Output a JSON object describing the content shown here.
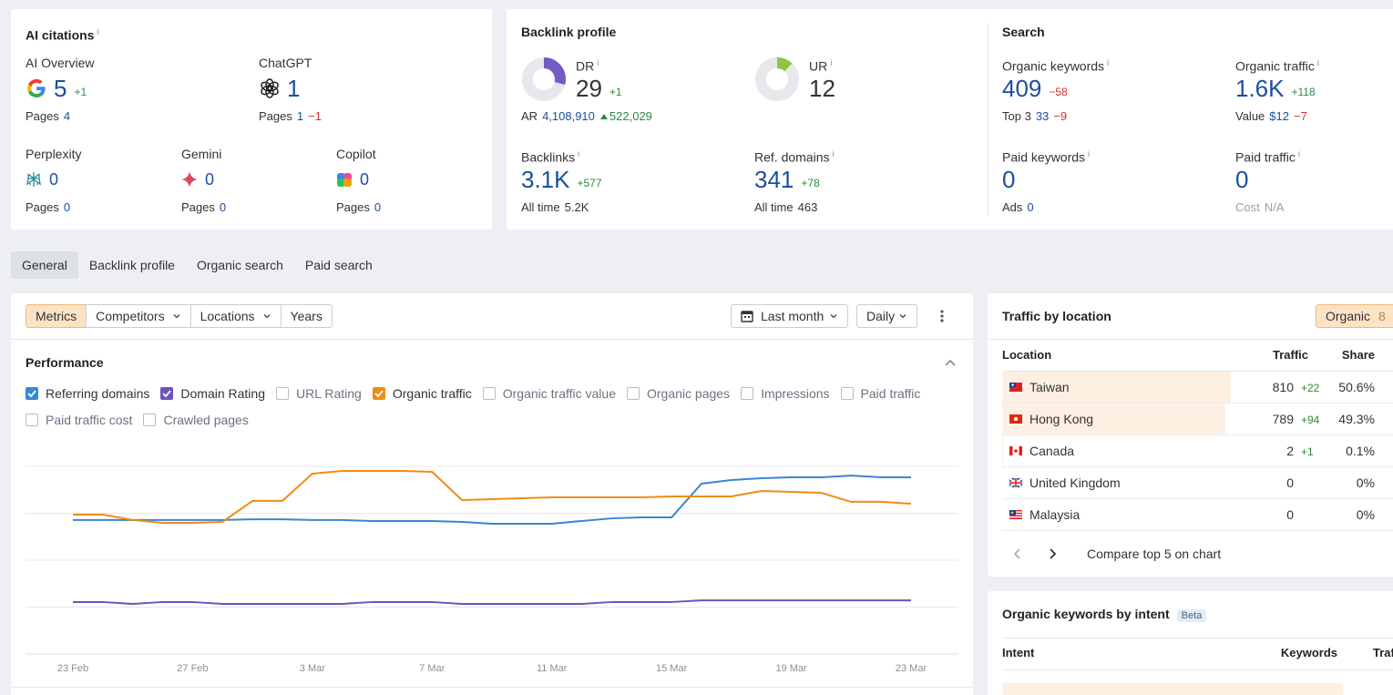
{
  "ai_citations": {
    "title": "AI citations",
    "info": "i",
    "metrics": [
      {
        "label": "AI Overview",
        "value": 5,
        "delta": "+1",
        "sub": {
          "label": "Pages",
          "value": 4
        }
      },
      {
        "label": "ChatGPT",
        "value": 1,
        "sub": {
          "label": "Pages",
          "value": 1,
          "delta": "−1"
        }
      },
      {
        "label": "Perplexity",
        "value": 0,
        "sub": {
          "label": "Pages",
          "value": 0
        }
      },
      {
        "label": "Gemini",
        "value": 0,
        "sub": {
          "label": "Pages",
          "value": 0
        }
      },
      {
        "label": "Copilot",
        "value": 0,
        "sub": {
          "label": "Pages",
          "value": 0
        }
      }
    ]
  },
  "backlink_profile": {
    "title": "Backlink profile",
    "metrics": [
      {
        "label": "DR",
        "info": "i",
        "value": 29,
        "range": [
          0,
          100
        ],
        "color": "#7459c9",
        "delta": "+1",
        "sub": {
          "label": "AR",
          "value": "4,108,910",
          "delta": "522,029"
        }
      },
      {
        "label": "UR",
        "info": "i",
        "value": 12,
        "range": [
          0,
          100
        ],
        "color": "#8dc63f"
      },
      {
        "label": "Backlinks",
        "info": "i",
        "value": "3.1K",
        "delta": "+577",
        "sub": {
          "label": "All time",
          "value": "5.2K"
        }
      },
      {
        "label": "Ref. domains",
        "info": "i",
        "value": 341,
        "delta": "+78",
        "sub": {
          "label": "All time",
          "value": 463
        }
      }
    ]
  },
  "search": {
    "title": "Search",
    "metrics": [
      {
        "label": "Organic keywords",
        "info": "i",
        "value": 409,
        "delta": "−58",
        "sub": {
          "label": "Top 3",
          "value": 33,
          "delta": "−9"
        }
      },
      {
        "label": "Organic traffic",
        "info": "i",
        "value": "1.6K",
        "delta": "+118",
        "sub": {
          "label": "Value",
          "value": "$12",
          "delta": "−7"
        }
      },
      {
        "label": "Paid keywords",
        "info": "i",
        "value": 0,
        "sub": {
          "label": "Ads",
          "value": 0
        }
      },
      {
        "label": "Paid traffic",
        "info": "i",
        "value": 0,
        "sub": {
          "label": "Cost",
          "value": "N/A"
        }
      }
    ]
  },
  "tabs": [
    {
      "label": "General",
      "active": true
    },
    {
      "label": "Backlink profile",
      "active": false
    },
    {
      "label": "Organic search",
      "active": false
    },
    {
      "label": "Paid search",
      "active": false
    }
  ],
  "toolbar": {
    "views": [
      {
        "label": "Metrics",
        "active": true,
        "dropdown": false
      },
      {
        "label": "Competitors",
        "active": false,
        "dropdown": true
      },
      {
        "label": "Locations",
        "active": false,
        "dropdown": true
      },
      {
        "label": "Years",
        "active": false,
        "dropdown": false
      }
    ],
    "period": "Last month",
    "interval": "Daily"
  },
  "chart_data": {
    "type": "line",
    "title": "Performance",
    "categories": [
      "23 Feb",
      null,
      null,
      null,
      "27 Feb",
      null,
      null,
      null,
      "3 Mar",
      null,
      null,
      null,
      "7 Mar",
      null,
      null,
      null,
      "11 Mar",
      null,
      null,
      null,
      "15 Mar",
      null,
      null,
      null,
      "19 Mar",
      null,
      null,
      null,
      "23 Mar"
    ],
    "series": [
      {
        "name": "Referring domains",
        "checked": true,
        "color": "#3a86d6",
        "values": [
          71.4,
          71.4,
          71.4,
          71.4,
          71.4,
          71.4,
          71.8,
          71.8,
          71.4,
          71.4,
          70.9,
          70.9,
          70.9,
          70.4,
          69.4,
          69.4,
          69.4,
          70.9,
          72.3,
          72.8,
          72.8,
          90.8,
          92.7,
          93.7,
          94.2,
          94.2,
          95.1,
          94.2,
          94.2
        ]
      },
      {
        "name": "Domain Rating",
        "checked": true,
        "color": "#6f52c1",
        "values": [
          27.7,
          27.7,
          26.7,
          27.7,
          27.7,
          26.7,
          26.7,
          26.7,
          26.7,
          26.7,
          27.7,
          27.7,
          27.7,
          26.7,
          26.7,
          26.7,
          26.7,
          26.7,
          27.7,
          27.7,
          27.7,
          28.6,
          28.6,
          28.6,
          28.6,
          28.6,
          28.6,
          28.6,
          28.6
        ]
      },
      {
        "name": "URL Rating",
        "checked": false
      },
      {
        "name": "Organic traffic",
        "checked": true,
        "color": "#f08c14",
        "values": [
          74.3,
          74.3,
          71.4,
          69.9,
          69.9,
          70.4,
          81.6,
          81.6,
          96.1,
          97.6,
          97.6,
          97.6,
          97.1,
          82.0,
          82.5,
          83.0,
          83.5,
          83.5,
          83.5,
          83.5,
          84.0,
          84.0,
          84.0,
          86.9,
          86.4,
          85.9,
          81.1,
          81.1,
          80.1
        ]
      },
      {
        "name": "Organic traffic value",
        "checked": false
      },
      {
        "name": "Organic pages",
        "checked": false
      },
      {
        "name": "Impressions",
        "checked": false
      },
      {
        "name": "Paid traffic",
        "checked": false
      },
      {
        "name": "Paid traffic cost",
        "checked": false
      },
      {
        "name": "Crawled pages",
        "checked": false
      }
    ],
    "ylim": [
      0,
      100
    ],
    "yticks": [
      25,
      50,
      75,
      100
    ],
    "grid": true
  },
  "traffic_by_location": {
    "title": "Traffic by location",
    "filter": "Organic",
    "filter_count": 8,
    "columns": [
      "Location",
      "Traffic",
      "Share"
    ],
    "rows": [
      {
        "country": "Taiwan",
        "traffic": 810,
        "delta": "+22",
        "share": 50.6,
        "share_label": "50.6%"
      },
      {
        "country": "Hong Kong",
        "traffic": 789,
        "delta": "+94",
        "share": 49.3,
        "share_label": "49.3%"
      },
      {
        "country": "Canada",
        "traffic": 2,
        "delta": "+1",
        "share": 0.1,
        "share_label": "0.1%"
      },
      {
        "country": "United Kingdom",
        "traffic": 0,
        "share": 0,
        "share_label": "0%"
      },
      {
        "country": "Malaysia",
        "traffic": 0,
        "share": 0,
        "share_label": "0%"
      }
    ],
    "footer": "Compare top 5 on chart"
  },
  "keywords_by_intent": {
    "title": "Organic keywords by intent",
    "badge": "Beta",
    "columns": [
      "Intent",
      "Keywords",
      "Traf"
    ]
  }
}
